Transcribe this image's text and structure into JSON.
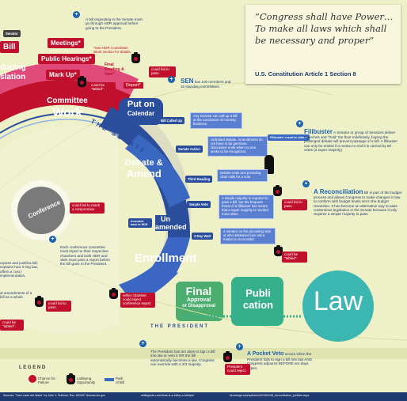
{
  "quote": {
    "text": "“Congress shall have Power…To make all laws which shall be necessary and proper”",
    "source": "U.S. Constitution Article 1 Section 8"
  },
  "house_side": {
    "senator_tag": "Senator",
    "bill": "Bill",
    "introducing": "ducing",
    "legislation": "slation",
    "committee_work": "Committee Work",
    "meetings": "Meetings*",
    "public_hearings": "Public Hearings*",
    "mark_up": "Mark Up*",
    "final_reading": "Final Reading & Vote*",
    "report": "Report*",
    "hdr_note": "*See HDR Committee Work section for details.",
    "could_fail": "could fail to pass.",
    "could_be_tabled": "could be \"tabled\"."
  },
  "info_notes": {
    "bill_originating": "A bill originating in the Senate must go through HDR approval before going to the President.",
    "sen_count_highlight": "SEN",
    "sen_count": "has 100 members and 16 standing committees.",
    "filibuster_title": "Filibuster",
    "filibuster_text": "A Senator or group of Senators deliver speeches and \"hold\" the floor indefinitely, hoping the prolonged debate will prevent passage of a bill. A filibuster can only be ended if a motion to end it is carried by 60 votes (a super majority).",
    "reconciliation_title": "A Reconciliation",
    "reconciliation_text": "bill is part of the budget process and allows Congress to make changes in law to conform with budget levels set in the budget resolution. It has become an alternative way to pass contentious legislation in the Senate because it only requires a simple majority to pass.",
    "conference_text": "Each conference committee must report to their respective chambers and both HDR and SEN must pass a report before the bill goes to the President.",
    "president_text": "The President has ten days to sign a bill into law or veto it OR the bill automatically becomes a law. Congress can override with a 2/3 majority.",
    "pocket_veto_title": "A Pocket Veto",
    "pocket_veto_text": "occurs when the President fails to sign a bill into law AND Congress adjourns BEFORE ten days expire.",
    "left_partial_1": "urpose and justifica bill; explains how it ting law, offers a cost r implementation.",
    "left_partial_2": "al amendments of a bill as a whole."
  },
  "senate_track": {
    "put_on_calendar": "Put on Calendar",
    "senate_arc_label": "THE SENATE",
    "bill_called_up": "Bill Called Up",
    "bill_called_up_text": "Any Senator can call up a bill at the conclusion of morning business.",
    "debate_amend": "Debate & Amend",
    "senate_action": "Senate Action",
    "senate_action_text": "Unlimited debate. Amendments do not have to be germane. Discussion ends when no one seeks to be recognized.",
    "filibuster_tag": "Filibuster / resort to cloture",
    "third_reading": "Third Reading",
    "third_reading_text": "Debate ends and presiding chair calls for a vote.",
    "senate_vote": "Senate Vote",
    "senate_vote_text": "A simple majority is required to pass a bill, but the frequent threat of a filibuster has meant that a super majority is needed more often.",
    "amended_back": "Amended back to HDR",
    "un_amended": "Un amended",
    "three_day_wait": "3 Day Wait",
    "three_day_wait_text": "A senator on the prevailing side or who abstained can call a motion to reconsider.",
    "enrollment": "Enrollment",
    "conference": "Conference",
    "final_approval": "Final Approval or Disapproval",
    "publication": "Publi cation",
    "law": "Law",
    "president_arc_label": "THE PRESIDENT",
    "could_fail_pass": "could fail to pass.",
    "could_be_tabled": "could be \"tabled\".",
    "could_fail_compromise": "could fail to reach a compromise",
    "either_chamber": "either chamber could reject conference report",
    "pres_could_reject": "President could reject."
  },
  "legend": {
    "title": "L E G E N D",
    "items": [
      "Chance for Failure",
      "Lobbying Opportunity",
      "Path of Bill"
    ]
  },
  "footer": {
    "sources": "Sources: \"How Laws are Made\" by John V. Sullivan, Rev. 8/24/07 thomas.loc.gov",
    "source2": "whitegoofs.com/what-is-a-lobby-a-lobbyist",
    "source3": "brookings.edu/opinions/2016/0128_reconciliation_(civilian.aspx"
  },
  "colors": {
    "background": "#eef0c8",
    "committee_red": "#c0102e",
    "senate_blue": "#2a4d9c",
    "enrollment_blue": "#3b66c4",
    "final_green": "#4cae6e",
    "publication_teal": "#36b08a",
    "law_teal": "#3cb6b0",
    "conference_gray": "#7a7a7a"
  }
}
